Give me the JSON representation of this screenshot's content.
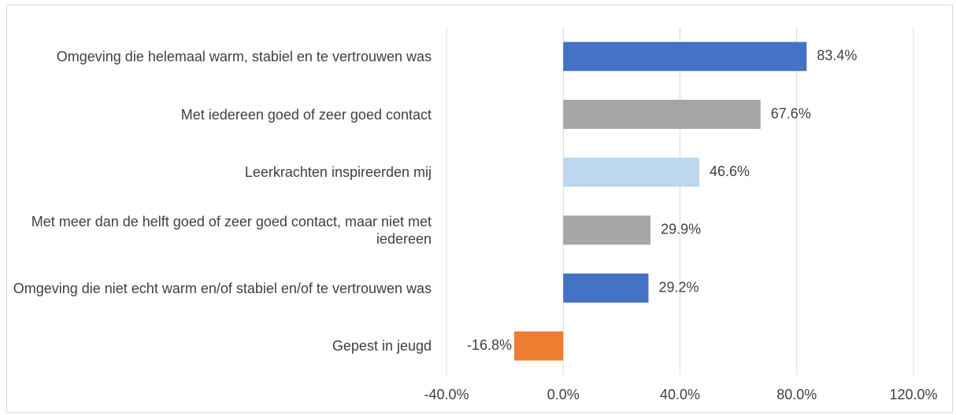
{
  "chart_data": {
    "type": "barh",
    "categories": [
      "Omgeving die helemaal warm, stabiel en te vertrouwen was",
      "Met iedereen goed of zeer goed contact",
      "Leerkrachten inspireerden mij",
      "Met meer dan de helft goed of zeer goed contact, maar niet met iedereen",
      "Omgeving die niet echt warm en/of stabiel en/of te vertrouwen was",
      "Gepest in jeugd"
    ],
    "values": [
      83.4,
      67.6,
      46.6,
      29.9,
      29.2,
      -16.8
    ],
    "value_labels": [
      "83.4%",
      "67.6%",
      "46.6%",
      "29.9%",
      "29.2%",
      "-16.8%"
    ],
    "colors": [
      "#4472c4",
      "#a5a5a5",
      "#bdd7ee",
      "#a5a5a5",
      "#4472c4",
      "#ed7d31"
    ],
    "xlim": [
      -40,
      120
    ],
    "xticks": [
      {
        "value": -40,
        "label": "-40.0%"
      },
      {
        "value": 0,
        "label": "0.0%"
      },
      {
        "value": 40,
        "label": "40.0%"
      },
      {
        "value": 80,
        "label": "80.0%"
      },
      {
        "value": 120,
        "label": "120.0%"
      }
    ],
    "grid": true
  }
}
